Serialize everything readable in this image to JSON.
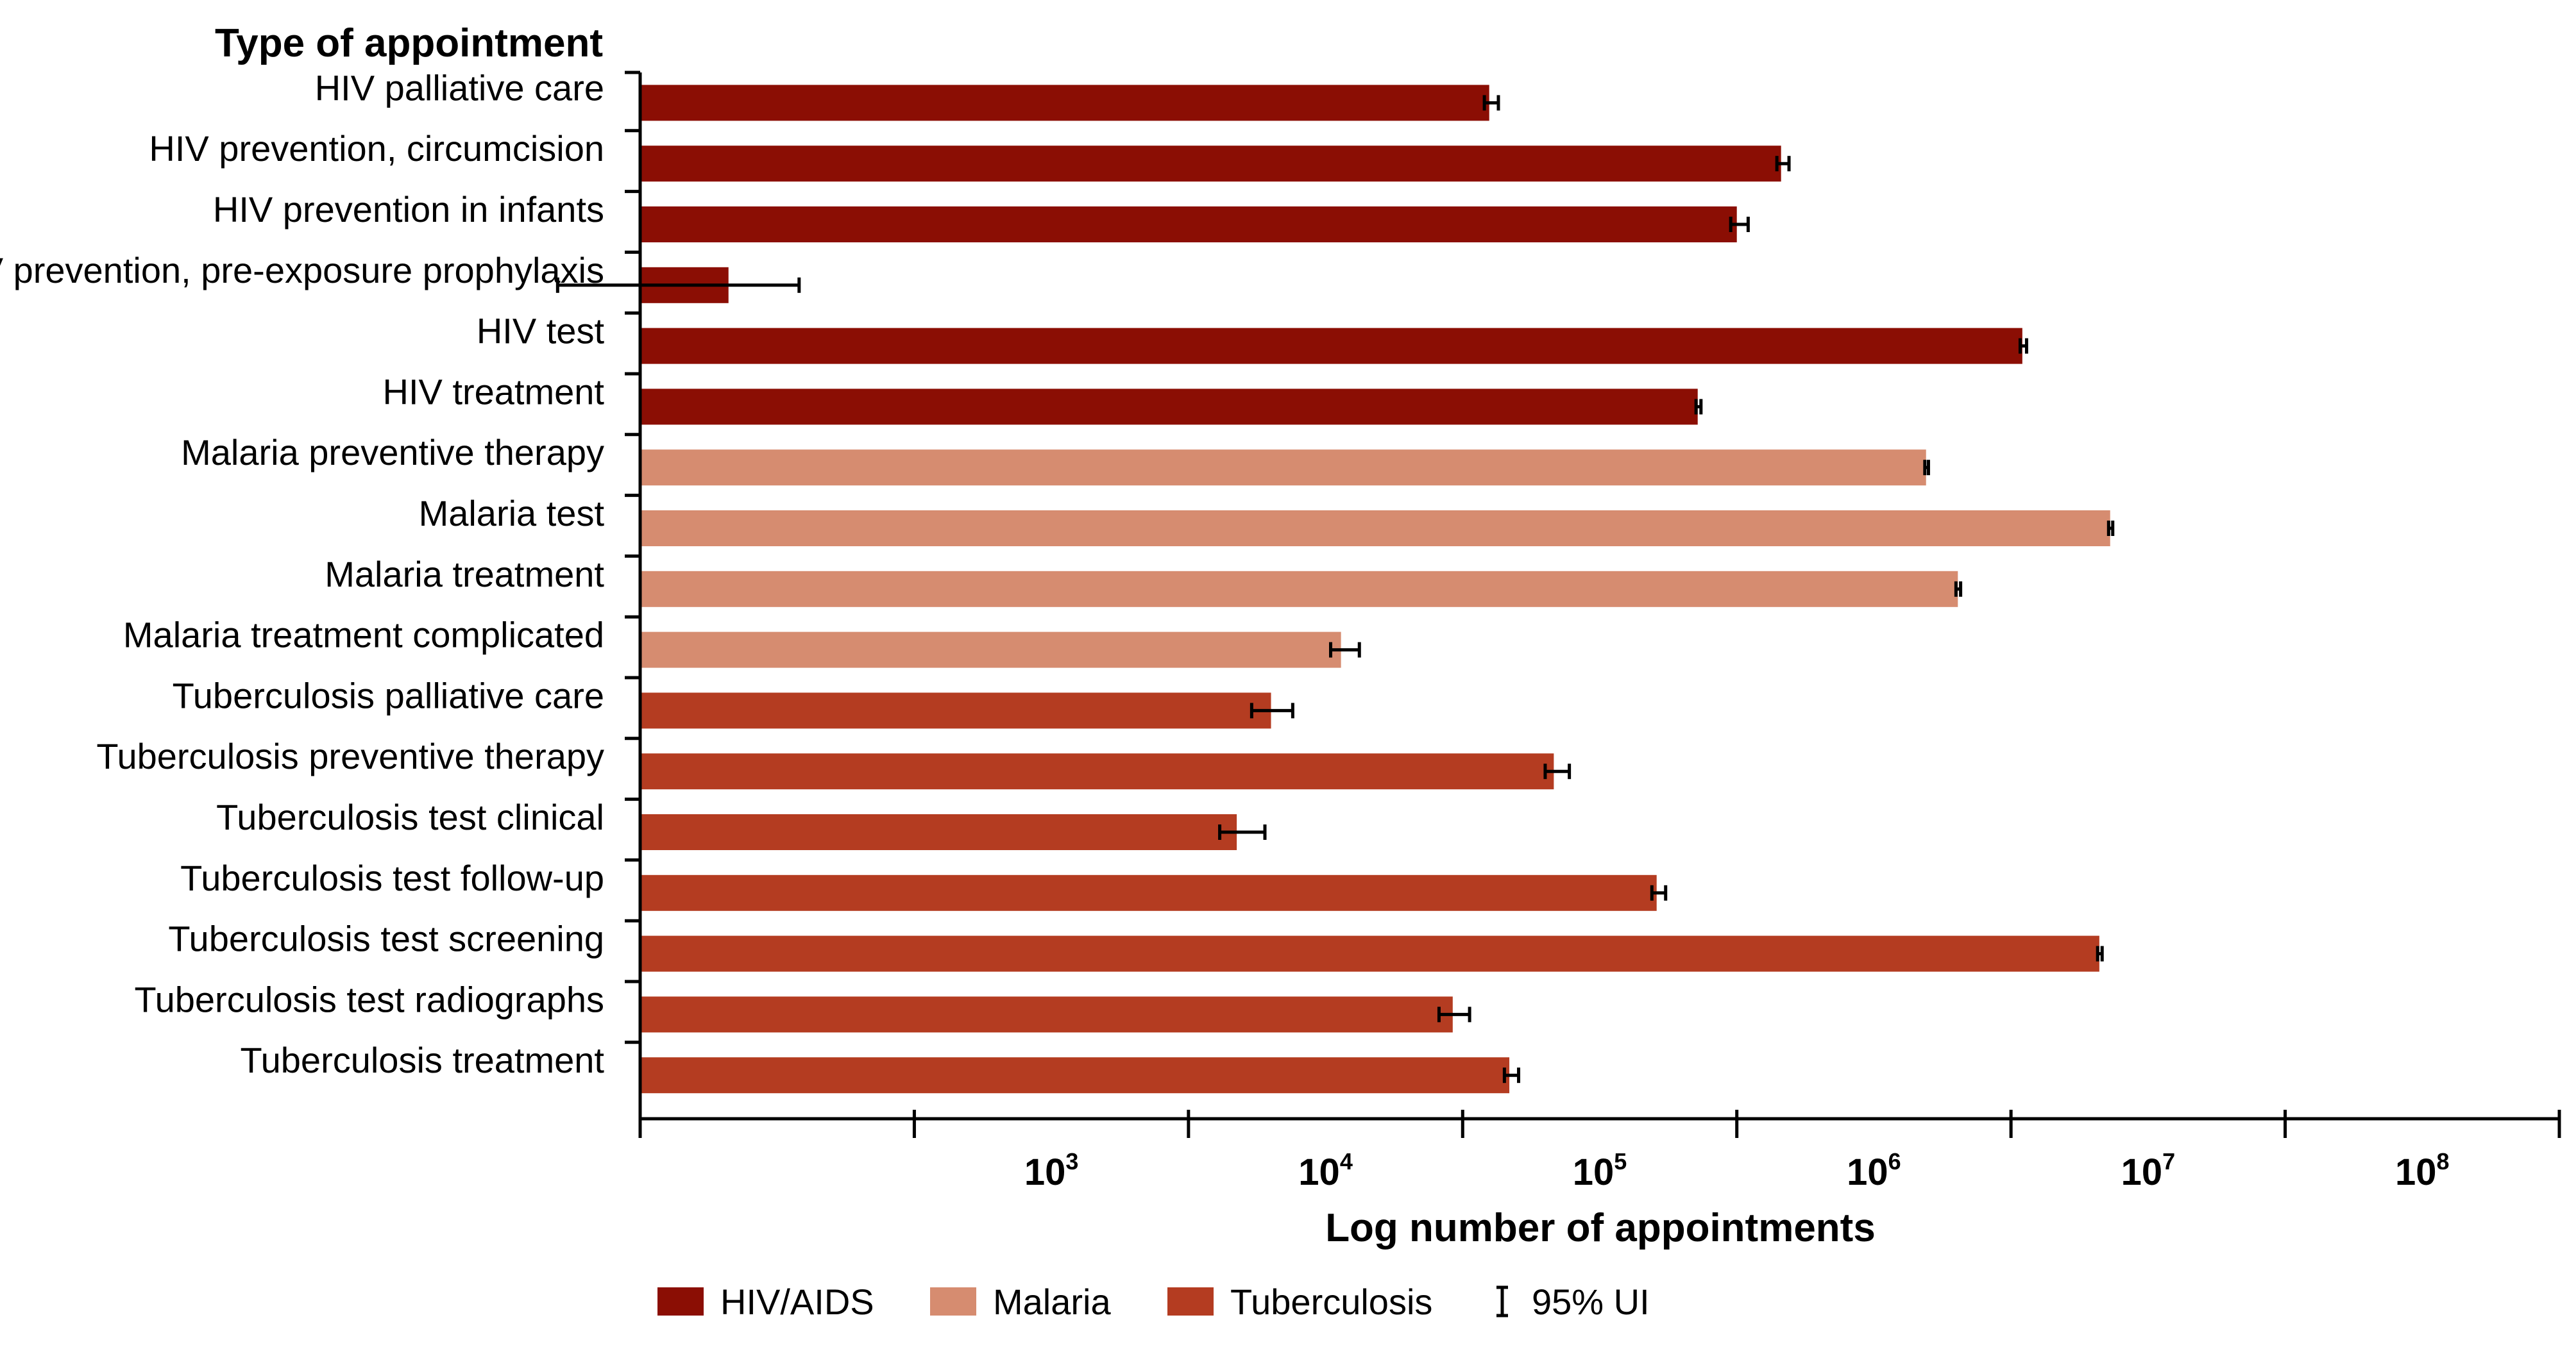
{
  "chart_data": {
    "type": "bar",
    "orientation": "horizontal",
    "y_axis_title": "Type of appointment",
    "x_axis_title": "Log number of appointments",
    "x_scale": "log",
    "xlim": [
      100,
      1000000000
    ],
    "x_ticks": [
      {
        "base": "10",
        "exp": "3",
        "value": 1000
      },
      {
        "base": "10",
        "exp": "4",
        "value": 10000
      },
      {
        "base": "10",
        "exp": "5",
        "value": 100000
      },
      {
        "base": "10",
        "exp": "6",
        "value": 1000000
      },
      {
        "base": "10",
        "exp": "7",
        "value": 10000000
      },
      {
        "base": "10",
        "exp": "8",
        "value": 100000000
      }
    ],
    "groups": [
      {
        "name": "HIV/AIDS",
        "color": "#8b0e04"
      },
      {
        "name": "Malaria",
        "color": "#d68c70"
      },
      {
        "name": "Tuberculosis",
        "color": "#b43c21"
      }
    ],
    "error_legend": {
      "glyph": "I",
      "label": "95% UI"
    },
    "bars": [
      {
        "category": "HIV palliative care",
        "group": 0,
        "value": 125000,
        "lower": 120000,
        "upper": 135000
      },
      {
        "category": "HIV prevention, circumcision",
        "group": 0,
        "value": 1450000,
        "lower": 1400000,
        "upper": 1550000
      },
      {
        "category": "HIV prevention in infants",
        "group": 0,
        "value": 1000000,
        "lower": 950000,
        "upper": 1100000
      },
      {
        "category": "HIV prevention, pre-exposure prophylaxis",
        "group": 0,
        "value": 210,
        "lower": 50,
        "upper": 380
      },
      {
        "category": "HIV test",
        "group": 0,
        "value": 11000000,
        "lower": 10800000,
        "upper": 11400000
      },
      {
        "category": "HIV treatment",
        "group": 0,
        "value": 720000,
        "lower": 710000,
        "upper": 740000
      },
      {
        "category": "Malaria preventive therapy",
        "group": 1,
        "value": 4900000,
        "lower": 4850000,
        "upper": 5000000
      },
      {
        "category": "Malaria test",
        "group": 1,
        "value": 23000000,
        "lower": 22700000,
        "upper": 23500000
      },
      {
        "category": "Malaria treatment",
        "group": 1,
        "value": 6400000,
        "lower": 6300000,
        "upper": 6550000
      },
      {
        "category": "Malaria treatment complicated",
        "group": 1,
        "value": 36000,
        "lower": 33000,
        "upper": 42000
      },
      {
        "category": "Tuberculosis palliative care",
        "group": 2,
        "value": 20000,
        "lower": 17000,
        "upper": 24000
      },
      {
        "category": "Tuberculosis preventive therapy",
        "group": 2,
        "value": 215000,
        "lower": 200000,
        "upper": 245000
      },
      {
        "category": "Tuberculosis test clinical",
        "group": 2,
        "value": 15000,
        "lower": 13000,
        "upper": 19000
      },
      {
        "category": "Tuberculosis test follow-up",
        "group": 2,
        "value": 510000,
        "lower": 490000,
        "upper": 550000
      },
      {
        "category": "Tuberculosis test screening",
        "group": 2,
        "value": 21000000,
        "lower": 20700000,
        "upper": 21500000
      },
      {
        "category": "Tuberculosis test radiographs",
        "group": 2,
        "value": 92000,
        "lower": 82000,
        "upper": 106000
      },
      {
        "category": "Tuberculosis treatment",
        "group": 2,
        "value": 148000,
        "lower": 142000,
        "upper": 160000
      }
    ]
  }
}
